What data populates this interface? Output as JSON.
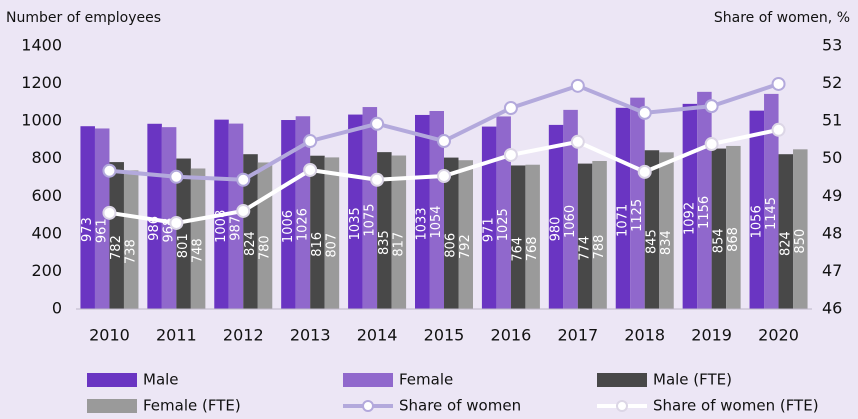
{
  "chart_data": {
    "type": "bar",
    "y_axis_label": "Number of employees",
    "y2_axis_label": "Share of women, %",
    "categories": [
      "2010",
      "2011",
      "2012",
      "2013",
      "2014",
      "2015",
      "2016",
      "2017",
      "2018",
      "2019",
      "2020"
    ],
    "series": [
      {
        "name": "Male",
        "type": "bar",
        "color": "#6a35c2",
        "values": [
          973,
          986,
          1008,
          1006,
          1035,
          1033,
          971,
          980,
          1071,
          1092,
          1056
        ]
      },
      {
        "name": "Female",
        "type": "bar",
        "color": "#9068cc",
        "values": [
          961,
          968,
          987,
          1026,
          1075,
          1054,
          1025,
          1060,
          1125,
          1156,
          1145
        ]
      },
      {
        "name": "Male (FTE)",
        "type": "bar",
        "color": "#484848",
        "values": [
          782,
          801,
          824,
          816,
          835,
          806,
          764,
          774,
          845,
          854,
          824
        ]
      },
      {
        "name": "Female (FTE)",
        "type": "bar",
        "color": "#9a9a9a",
        "values": [
          738,
          748,
          780,
          807,
          817,
          792,
          768,
          788,
          834,
          868,
          850
        ]
      },
      {
        "name": "Share of women",
        "type": "line",
        "axis": "y2",
        "color": "#b3a9dc",
        "values": [
          49.68,
          49.52,
          49.44,
          50.47,
          50.93,
          50.47,
          51.35,
          51.94,
          51.22,
          51.4,
          51.99
        ]
      },
      {
        "name": "Share of women (FTE)",
        "type": "line",
        "axis": "y2",
        "color": "#ffffff",
        "values": [
          48.56,
          48.29,
          48.61,
          49.7,
          49.44,
          49.54,
          50.1,
          50.45,
          49.65,
          50.39,
          50.77
        ]
      }
    ],
    "ylim": [
      0,
      1400
    ],
    "yticks": [
      0,
      200,
      400,
      600,
      800,
      1000,
      1200,
      1400
    ],
    "y2lim": [
      46,
      53
    ],
    "y2ticks": [
      46,
      47,
      48,
      49,
      50,
      51,
      52,
      53
    ]
  }
}
